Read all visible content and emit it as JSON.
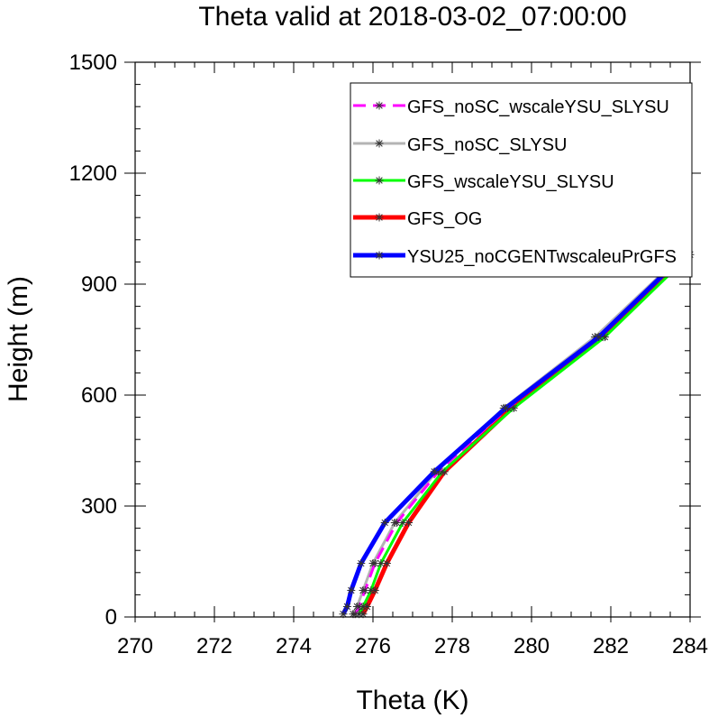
{
  "chart_data": {
    "type": "line",
    "title": "Theta valid at 2018-03-02_07:00:00",
    "xlabel": "Theta (K)",
    "ylabel": "Height (m)",
    "xlim": [
      270,
      284
    ],
    "ylim": [
      0,
      1500
    ],
    "xticks": [
      270,
      272,
      274,
      276,
      278,
      280,
      282,
      284
    ],
    "yticks": [
      0,
      300,
      600,
      900,
      1200,
      1500
    ],
    "grid": false,
    "legend_position": "top-right",
    "series": [
      {
        "name": "GFS_noSC_wscaleYSU_SLYSU",
        "color": "#ff00ff",
        "dashed": true,
        "width": 3,
        "points": [
          [
            275.55,
            8
          ],
          [
            275.65,
            28
          ],
          [
            275.8,
            72
          ],
          [
            276.05,
            145
          ],
          [
            276.6,
            255
          ],
          [
            277.65,
            393
          ],
          [
            279.4,
            565
          ],
          [
            281.7,
            757
          ],
          [
            283.9,
            980
          ]
        ]
      },
      {
        "name": "GFS_noSC_SLYSU",
        "color": "#b4b4b4",
        "dashed": false,
        "width": 3,
        "points": [
          [
            275.5,
            8
          ],
          [
            275.6,
            28
          ],
          [
            275.75,
            72
          ],
          [
            276.0,
            145
          ],
          [
            276.55,
            255
          ],
          [
            277.6,
            393
          ],
          [
            279.3,
            565
          ],
          [
            281.6,
            757
          ],
          [
            283.8,
            980
          ]
        ]
      },
      {
        "name": "GFS_wscaleYSU_SLYSU",
        "color": "#00ff00",
        "dashed": false,
        "width": 3,
        "points": [
          [
            275.65,
            8
          ],
          [
            275.75,
            28
          ],
          [
            275.95,
            72
          ],
          [
            276.2,
            145
          ],
          [
            276.75,
            255
          ],
          [
            277.75,
            393
          ],
          [
            279.55,
            565
          ],
          [
            281.85,
            757
          ],
          [
            284.0,
            980
          ]
        ]
      },
      {
        "name": "GFS_OG",
        "color": "#ff0000",
        "dashed": false,
        "width": 5,
        "points": [
          [
            275.75,
            8
          ],
          [
            275.85,
            28
          ],
          [
            276.05,
            72
          ],
          [
            276.35,
            145
          ],
          [
            276.9,
            255
          ],
          [
            277.8,
            393
          ],
          [
            279.5,
            565
          ],
          [
            281.8,
            757
          ],
          [
            283.95,
            980
          ]
        ]
      },
      {
        "name": "YSU25_noCGENTwscaleuPrGFS",
        "color": "#0000ff",
        "dashed": false,
        "width": 5,
        "points": [
          [
            275.25,
            8
          ],
          [
            275.35,
            28
          ],
          [
            275.45,
            72
          ],
          [
            275.7,
            145
          ],
          [
            276.3,
            255
          ],
          [
            277.55,
            393
          ],
          [
            279.35,
            565
          ],
          [
            281.7,
            757
          ],
          [
            283.85,
            980
          ]
        ]
      }
    ]
  }
}
